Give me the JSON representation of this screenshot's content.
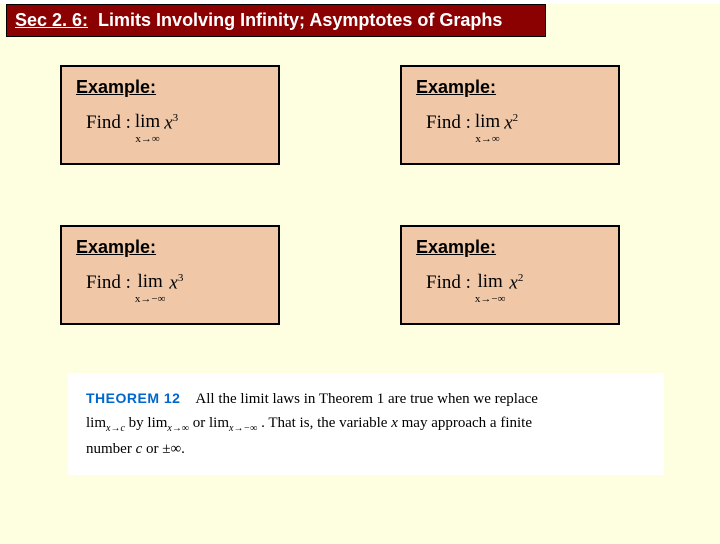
{
  "title": {
    "sec": "Sec 2. 6:",
    "rest": "  Limits Involving Infinity; Asymptotes of Graphs"
  },
  "examples": {
    "label": "Example:",
    "find_prefix": "Find : ",
    "lim_word": "lim",
    "items": [
      {
        "sub": "x→∞",
        "var": "x",
        "exp": "3"
      },
      {
        "sub": "x→∞",
        "var": "x",
        "exp": "2"
      },
      {
        "sub": "x→−∞",
        "var": "x",
        "exp": "3"
      },
      {
        "sub": "x→−∞",
        "var": "x",
        "exp": "2"
      }
    ]
  },
  "theorem": {
    "head": "THEOREM 12",
    "p1a": "All the limit laws in Theorem 1 are true when we replace",
    "limc": "lim",
    "sub_c": "x→c",
    "p1b": " by ",
    "sub_inf": "x→∞",
    "p1c": " or ",
    "sub_ninf": "x→−∞",
    "p1d": ". That is, the variable ",
    "varx": "x",
    "p1e": " may approach a finite",
    "p2a": "number ",
    "varc": "c",
    "p2b": " or ±∞."
  },
  "style": {
    "bg_slide": "#fefee0",
    "bg_title": "#8b0000",
    "title_text": "#ffffff",
    "box_bg": "#f0c8a8",
    "box_border": "#000000",
    "theorem_bg": "#ffffff",
    "theorem_head_color": "#0066cc"
  }
}
